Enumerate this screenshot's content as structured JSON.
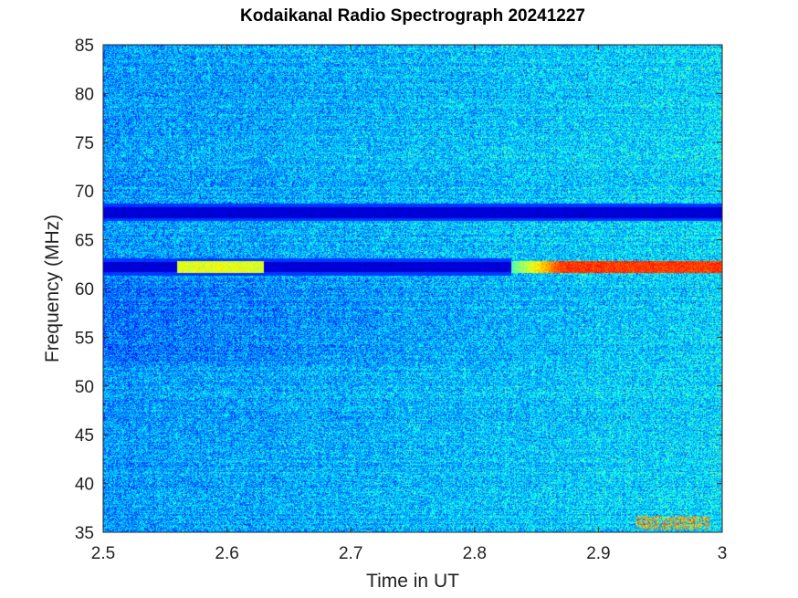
{
  "chart_data": {
    "type": "heatmap",
    "title": "Kodaikanal Radio Spectrograph  20241227",
    "xlabel": "Time in UT",
    "ylabel": "Frequency (MHz)",
    "xlim": [
      2.5,
      3.0
    ],
    "ylim": [
      35,
      85
    ],
    "xticks": [
      "2.5",
      "2.6",
      "2.7",
      "2.8",
      "2.9",
      "3"
    ],
    "yticks": [
      "35",
      "40",
      "45",
      "50",
      "55",
      "60",
      "65",
      "70",
      "75",
      "80",
      "85"
    ],
    "colormap": "jet",
    "grid": false,
    "features": [
      {
        "kind": "absorption_band",
        "freq_mhz": 67.8,
        "t_start": 2.5,
        "t_end": 3.0
      },
      {
        "kind": "absorption_band",
        "freq_mhz": 62.2,
        "t_start": 2.5,
        "t_end": 2.83
      },
      {
        "kind": "emission_band",
        "freq_mhz": 62.2,
        "t_start": 2.56,
        "t_end": 2.63,
        "level": "moderate"
      },
      {
        "kind": "emission_band",
        "freq_mhz": 62.2,
        "t_start": 2.83,
        "t_end": 3.0,
        "level": "strong"
      },
      {
        "kind": "emission_patch",
        "freq_mhz": 36.0,
        "t_start": 2.93,
        "t_end": 2.99,
        "level": "moderate"
      }
    ]
  }
}
